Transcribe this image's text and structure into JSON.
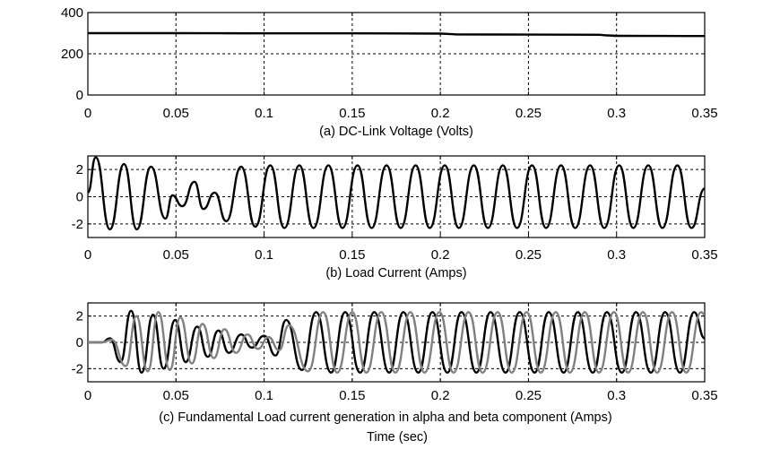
{
  "chart_data": [
    {
      "type": "line",
      "xlabel": "(a) DC-Link Voltage (Volts)",
      "ylabel": "",
      "xlim": [
        0,
        0.35
      ],
      "ylim": [
        0,
        400
      ],
      "xticks": [
        0,
        0.05,
        0.1,
        0.15,
        0.2,
        0.25,
        0.3,
        0.35
      ],
      "xtick_labels": [
        "0",
        "0.05",
        "0.1",
        "0.15",
        "0.2",
        "0.25",
        "0.3",
        "0.35"
      ],
      "yticks": [
        0,
        200,
        400
      ],
      "ytick_labels": [
        "0",
        "200",
        "400"
      ],
      "grid": true,
      "series": [
        {
          "color": "#000000",
          "x": [
            0,
            0.05,
            0.1,
            0.15,
            0.2,
            0.205,
            0.21,
            0.25,
            0.29,
            0.295,
            0.3,
            0.35
          ],
          "y": [
            300,
            300,
            299,
            299,
            298,
            296,
            294,
            293,
            292,
            289,
            287,
            286
          ]
        }
      ]
    },
    {
      "type": "line",
      "xlabel": "(b) Load Current (Amps)",
      "ylabel": "",
      "xlim": [
        0,
        0.35
      ],
      "ylim": [
        -3,
        3
      ],
      "xticks": [
        0,
        0.05,
        0.1,
        0.15,
        0.2,
        0.25,
        0.3,
        0.35
      ],
      "xtick_labels": [
        "0",
        "0.05",
        "0.1",
        "0.15",
        "0.2",
        "0.25",
        "0.3",
        "0.35"
      ],
      "yticks": [
        -2,
        0,
        2
      ],
      "ytick_labels": [
        "-2",
        "0",
        "2"
      ],
      "grid": true,
      "series": [
        {
          "color": "#000000",
          "x": [
            0,
            0.0045,
            0.0125,
            0.0205,
            0.0278,
            0.0358,
            0.044,
            0.048,
            0.0535,
            0.0605,
            0.0655,
            0.072,
            0.0785,
            0.087,
            0.095,
            0.1035,
            0.1115,
            0.12,
            0.128,
            0.1365,
            0.1445,
            0.153,
            0.161,
            0.1695,
            0.1775,
            0.186,
            0.194,
            0.2025,
            0.2105,
            0.219,
            0.227,
            0.2355,
            0.2435,
            0.252,
            0.26,
            0.2685,
            0.2765,
            0.285,
            0.293,
            0.3015,
            0.3095,
            0.318,
            0.326,
            0.3345,
            0.3425,
            0.35
          ],
          "y": [
            0.3,
            2.9,
            -2.4,
            2.4,
            -2.4,
            2.2,
            -1.6,
            0.1,
            -0.7,
            1.1,
            -0.9,
            0.3,
            -1.8,
            2.2,
            -2.2,
            2.3,
            -2.3,
            2.3,
            -2.3,
            2.3,
            -2.3,
            2.3,
            -2.3,
            2.3,
            -2.3,
            2.3,
            -2.3,
            2.3,
            -2.3,
            2.3,
            -2.3,
            2.3,
            -2.3,
            2.3,
            -2.3,
            2.3,
            -2.3,
            2.3,
            -2.3,
            2.3,
            -2.3,
            2.3,
            -2.3,
            2.3,
            -2.3,
            0.6
          ]
        }
      ]
    },
    {
      "type": "line",
      "xlabel": "(c) Fundamental Load current generation in alpha and beta component (Amps)",
      "ylabel": "",
      "xlim": [
        0,
        0.35
      ],
      "ylim": [
        -3,
        3
      ],
      "xticks": [
        0,
        0.05,
        0.1,
        0.15,
        0.2,
        0.25,
        0.3,
        0.35
      ],
      "xtick_labels": [
        "0",
        "0.05",
        "0.1",
        "0.15",
        "0.2",
        "0.25",
        "0.3",
        "0.35"
      ],
      "yticks": [
        -2,
        0,
        2
      ],
      "ytick_labels": [
        "-2",
        "0",
        "2"
      ],
      "grid": true,
      "series": [
        {
          "color": "#000000",
          "x": [
            0,
            0.008,
            0.0125,
            0.0185,
            0.0245,
            0.0305,
            0.037,
            0.043,
            0.0495,
            0.0555,
            0.062,
            0.068,
            0.074,
            0.08,
            0.087,
            0.093,
            0.1,
            0.1065,
            0.1125,
            0.1215,
            0.1295,
            0.138,
            0.146,
            0.1545,
            0.1625,
            0.171,
            0.179,
            0.1875,
            0.1955,
            0.204,
            0.212,
            0.2205,
            0.2285,
            0.237,
            0.245,
            0.2535,
            0.2615,
            0.27,
            0.278,
            0.2865,
            0.2945,
            0.303,
            0.311,
            0.3195,
            0.3275,
            0.336,
            0.344,
            0.35
          ],
          "y": [
            0,
            0,
            0.3,
            -1.5,
            2.4,
            -2.3,
            2.1,
            -2.0,
            1.7,
            -1.5,
            1.2,
            -1.1,
            0.9,
            -0.8,
            0.6,
            -0.4,
            0.5,
            -1.0,
            1.7,
            -2.1,
            2.3,
            -2.3,
            2.3,
            -2.3,
            2.3,
            -2.3,
            2.3,
            -2.3,
            2.3,
            -2.3,
            2.3,
            -2.3,
            2.3,
            -2.3,
            2.3,
            -2.3,
            2.3,
            -2.3,
            2.3,
            -2.3,
            2.3,
            -2.3,
            2.3,
            -2.3,
            2.3,
            -2.3,
            2.3,
            0.3
          ]
        },
        {
          "color": "#808080",
          "x": [
            0,
            0.008,
            0.0135,
            0.0215,
            0.0275,
            0.034,
            0.04,
            0.0465,
            0.0525,
            0.059,
            0.065,
            0.0715,
            0.0775,
            0.084,
            0.0905,
            0.0965,
            0.1025,
            0.1085,
            0.114,
            0.125,
            0.1335,
            0.1415,
            0.15,
            0.158,
            0.1665,
            0.1745,
            0.183,
            0.191,
            0.1995,
            0.2075,
            0.216,
            0.224,
            0.2325,
            0.2405,
            0.249,
            0.257,
            0.2655,
            0.2735,
            0.282,
            0.29,
            0.2985,
            0.3065,
            0.315,
            0.323,
            0.3315,
            0.3395,
            0.348,
            0.35
          ],
          "y": [
            0,
            0,
            0.2,
            -1.8,
            2.0,
            -2.2,
            2.3,
            -2.1,
            1.9,
            -1.6,
            1.4,
            -1.2,
            1.0,
            -0.8,
            0.6,
            -0.5,
            0.4,
            -0.6,
            1.3,
            -2.2,
            2.3,
            -2.3,
            2.3,
            -2.3,
            2.3,
            -2.3,
            2.3,
            -2.3,
            2.3,
            -2.3,
            2.3,
            -2.3,
            2.3,
            -2.3,
            2.3,
            -2.3,
            2.3,
            -2.3,
            2.3,
            -2.3,
            2.3,
            -2.3,
            2.3,
            -2.3,
            2.3,
            -2.3,
            2.3,
            2.1
          ]
        }
      ]
    }
  ],
  "footer": {
    "label": "Time (sec)"
  }
}
